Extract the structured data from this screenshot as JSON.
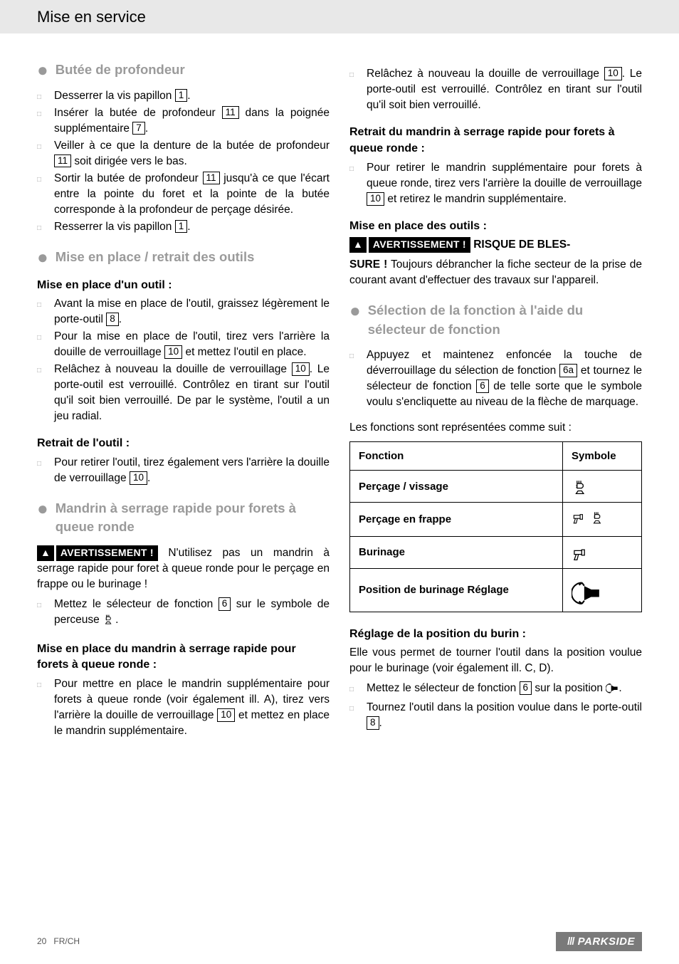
{
  "header": {
    "title": "Mise en service"
  },
  "left": {
    "sec1_title": "Butée de profondeur",
    "sec1_items": [
      "Desserrer la vis papillon |1|.",
      "Insérer la butée de profondeur |11| dans la poignée supplémentaire |7|.",
      "Veiller à ce que la denture de la butée de profondeur |11| soit dirigée vers le bas.",
      "Sortir la butée de profondeur |11| jusqu'à ce que l'écart entre la pointe du foret et la pointe de la butée corresponde à la profondeur de perçage désirée.",
      "Resserrer la vis papillon |1|."
    ],
    "sec2_title": "Mise en place / retrait des outils",
    "sub2a": "Mise en place d'un outil :",
    "sec2a_items": [
      "Avant la mise en place de l'outil, graissez légèrement le porte-outil |8|.",
      "Pour la mise en place de l'outil, tirez vers l'arrière la douille de verrouillage |10| et mettez l'outil en place.",
      "Relâchez à nouveau la douille de verrouillage |10|. Le porte-outil est verrouillé. Contrôlez en tirant sur l'outil qu'il soit bien verrouillé. De par le système, l'outil a un jeu radial."
    ],
    "sub2b": "Retrait de l'outil :",
    "sec2b_items": [
      "Pour retirer l'outil, tirez également vers l'arrière la douille de verrouillage |10|."
    ],
    "sec3_title": "Mandrin à serrage rapide pour forets à queue ronde",
    "sec3_warn_label": "AVERTISSEMENT !",
    "sec3_warn_body": " N'utilisez pas un mandrin à serrage rapide pour foret à queue ronde pour le perçage en frappe ou le burinage !",
    "sec3_items": [
      "Mettez le sélecteur de fonction |6| sur le symbole de perceuse §drill§."
    ],
    "sub3c": "Mise en place du mandrin à serrage rapide pour forets à queue ronde :",
    "sec3c_items": [
      "Pour mettre en place le mandrin supplémentaire pour forets à queue ronde (voir également ill. A), tirez vers l'arrière la douille de verrouillage |10| et mettez en place le mandrin supplémentaire."
    ]
  },
  "right": {
    "cont_items": [
      "Relâchez à nouveau la douille de verrouillage |10|. Le porte-outil est verrouillé. Contrôlez en tirant sur l'outil qu'il soit bien verrouillé."
    ],
    "sub_r1": "Retrait du mandrin à serrage rapide pour forets à queue ronde :",
    "r1_items": [
      "Pour retirer le mandrin supplémentaire pour forets à queue ronde, tirez vers l'arrière la douille de verrouillage |10| et retirez le mandrin supplémentaire."
    ],
    "sub_r2": "Mise en place des outils :",
    "r2_warn_label": "AVERTISSEMENT !",
    "r2_warn_tail": " RISQUE DE BLES-",
    "r2_body_lead": "SURE !",
    "r2_body": " Toujours débrancher la fiche secteur de la prise de courant avant d'effectuer des travaux sur l'appareil.",
    "sec4_title": "Sélection de la fonction à l'aide du sélecteur de fonction",
    "sec4_items": [
      "Appuyez et maintenez enfoncée la touche de déverrouillage du sélection de fonction |6a| et tournez le sélecteur de fonction |6| de telle sorte que le symbole voulu s'encliquette au niveau de la flèche de marquage."
    ],
    "table_intro": "Les fonctions sont représentées comme suit :",
    "table": {
      "headers": [
        "Fonction",
        "Symbole"
      ],
      "rows": [
        {
          "name": "Perçage / vissage",
          "symbol": "drill"
        },
        {
          "name": "Perçage en frappe",
          "symbol": "hammer-drill"
        },
        {
          "name": "Burinage",
          "symbol": "hammer"
        },
        {
          "name": "Position de burinage Réglage",
          "symbol": "adjust"
        }
      ]
    },
    "sub_r3": "Réglage de la position du burin :",
    "r3_intro": "Elle vous permet de tourner l'outil dans la position voulue pour le burinage (voir également ill. C, D).",
    "r3_items": [
      "Mettez le sélecteur de fonction |6| sur la position §adjust§.",
      "Tournez l'outil dans la position voulue dans le porte-outil |8|."
    ]
  },
  "footer": {
    "page": "20",
    "lang": "FR/CH",
    "brand": "PARKSIDE"
  },
  "colors": {
    "grey": "#9a9a9a",
    "header_bg": "#e8e8e8",
    "footer_bg": "#7a7a7a"
  }
}
